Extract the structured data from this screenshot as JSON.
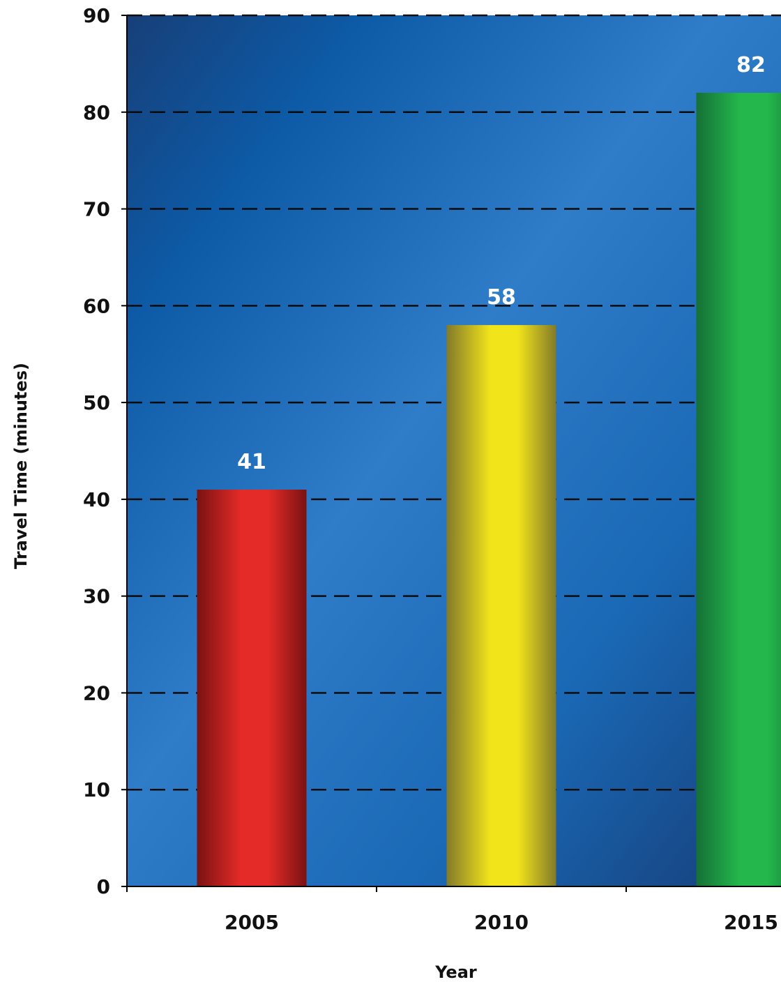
{
  "chart_data": {
    "type": "bar",
    "categories": [
      "2005",
      "2010",
      "2015"
    ],
    "values": [
      41,
      58,
      82
    ],
    "data_labels": [
      "41",
      "58",
      "82"
    ],
    "xlabel": "Year",
    "ylabel": "Travel Time (minutes)",
    "ylim": [
      0,
      90
    ],
    "yticks": [
      "0",
      "10",
      "20",
      "30",
      "40",
      "50",
      "60",
      "70",
      "80",
      "90"
    ],
    "grid": true,
    "grid_style": "dashed",
    "bar_colors": [
      "#e0282a",
      "#f1e41a",
      "#22b34a"
    ],
    "background_colors": [
      "#0e3a78",
      "#2d7cc8"
    ]
  }
}
